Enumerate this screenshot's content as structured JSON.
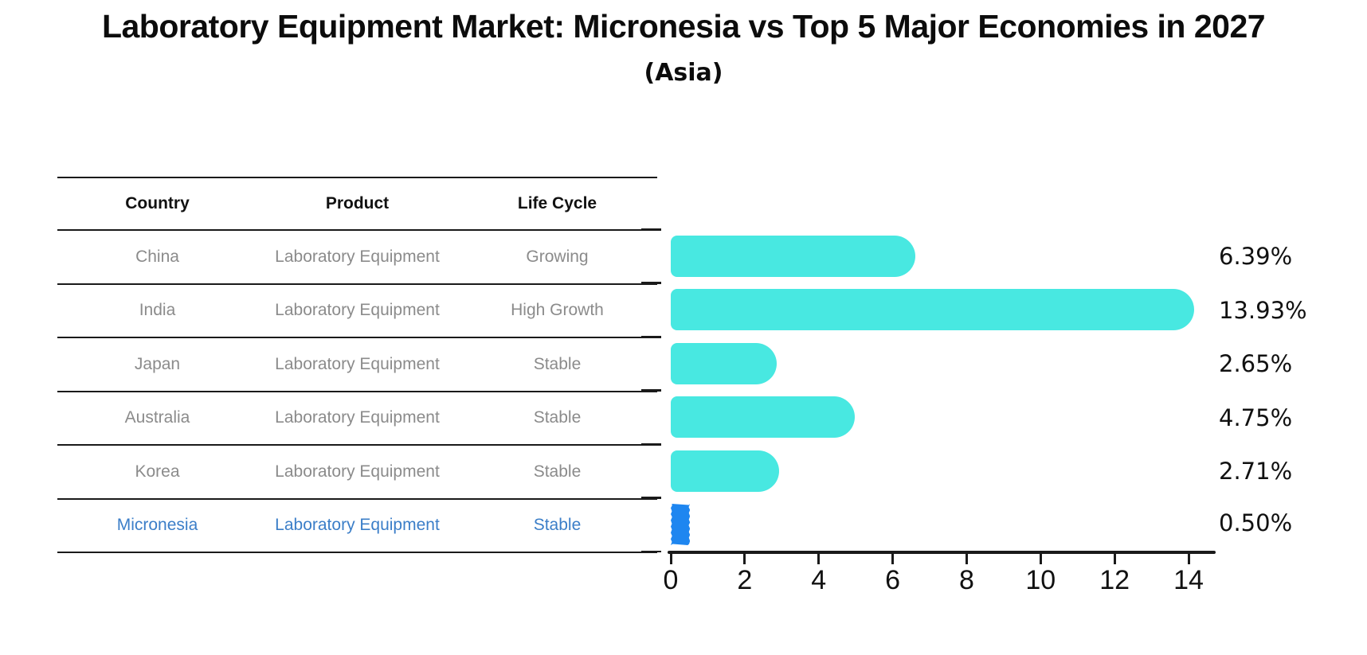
{
  "title": "Laboratory Equipment Market: Micronesia vs Top 5 Major Economies in 2027",
  "subtitle": "(Asia)",
  "table": {
    "headers": [
      "Country",
      "Product",
      "Life Cycle"
    ],
    "rows": [
      {
        "country": "China",
        "product": "Laboratory Equipment",
        "life_cycle": "Growing"
      },
      {
        "country": "India",
        "product": "Laboratory Equipment",
        "life_cycle": "High Growth"
      },
      {
        "country": "Japan",
        "product": "Laboratory Equipment",
        "life_cycle": "Stable"
      },
      {
        "country": "Australia",
        "product": "Laboratory Equipment",
        "life_cycle": "Stable"
      },
      {
        "country": "Korea",
        "product": "Laboratory Equipment",
        "life_cycle": "Stable"
      },
      {
        "country": "Micronesia",
        "product": "Laboratory Equipment",
        "life_cycle": "Stable"
      }
    ]
  },
  "chart_data": {
    "type": "bar",
    "orientation": "horizontal",
    "title": "Laboratory Equipment Market: Micronesia vs Top 5 Major Economies in 2027 (Asia)",
    "categories": [
      "China",
      "India",
      "Japan",
      "Australia",
      "Korea",
      "Micronesia"
    ],
    "values": [
      6.39,
      13.93,
      2.65,
      4.75,
      2.71,
      0.5
    ],
    "value_labels": [
      "6.39%",
      "13.93%",
      "2.65%",
      "4.75%",
      "2.71%",
      "0.50%"
    ],
    "x_ticks": [
      0,
      2,
      4,
      6,
      8,
      10,
      12,
      14
    ],
    "xlim": [
      0,
      14.65
    ],
    "grid": false,
    "legend": "none",
    "bar_color": "#48e8e1",
    "highlight_color": "#1e86f0",
    "highlight_category": "Micronesia"
  },
  "colors": {
    "ink": "#1a1a1a",
    "muted_text": "#8b8b8b",
    "highlight_text": "#3b7ec8",
    "background": "#ffffff"
  }
}
